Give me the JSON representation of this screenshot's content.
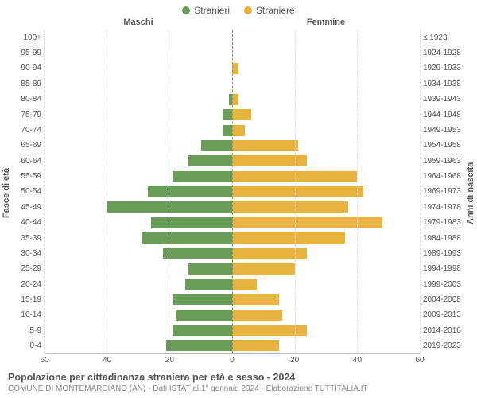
{
  "type": "population-pyramid",
  "legend": [
    {
      "label": "Stranieri",
      "color": "#6a9e58"
    },
    {
      "label": "Straniere",
      "color": "#e8b43f"
    }
  ],
  "headers": {
    "left": "Maschi",
    "right": "Femmine"
  },
  "y_axis_left_title": "Fasce di età",
  "y_axis_right_title": "Anni di nascita",
  "x_axis": {
    "max": 60,
    "ticks": [
      0,
      20,
      40,
      60
    ]
  },
  "bar_colors": {
    "male": "#6a9e58",
    "female": "#e8b43f"
  },
  "background_color": "#ffffff",
  "grid_color": "#dddddd",
  "center_line_color": "#888888",
  "label_color": "#555555",
  "label_fontsize": 10,
  "rows": [
    {
      "age": "100+",
      "birth": "≤ 1923",
      "male": 0,
      "female": 0
    },
    {
      "age": "95-99",
      "birth": "1924-1928",
      "male": 0,
      "female": 0
    },
    {
      "age": "90-94",
      "birth": "1929-1933",
      "male": 0,
      "female": 2
    },
    {
      "age": "85-89",
      "birth": "1934-1938",
      "male": 0,
      "female": 0
    },
    {
      "age": "80-84",
      "birth": "1939-1943",
      "male": 1,
      "female": 2
    },
    {
      "age": "75-79",
      "birth": "1944-1948",
      "male": 3,
      "female": 6
    },
    {
      "age": "70-74",
      "birth": "1949-1953",
      "male": 3,
      "female": 4
    },
    {
      "age": "65-69",
      "birth": "1954-1958",
      "male": 10,
      "female": 21
    },
    {
      "age": "60-64",
      "birth": "1959-1963",
      "male": 14,
      "female": 24
    },
    {
      "age": "55-59",
      "birth": "1964-1968",
      "male": 19,
      "female": 40
    },
    {
      "age": "50-54",
      "birth": "1969-1973",
      "male": 27,
      "female": 42
    },
    {
      "age": "45-49",
      "birth": "1974-1978",
      "male": 40,
      "female": 37
    },
    {
      "age": "40-44",
      "birth": "1979-1983",
      "male": 26,
      "female": 48
    },
    {
      "age": "35-39",
      "birth": "1984-1988",
      "male": 29,
      "female": 36
    },
    {
      "age": "30-34",
      "birth": "1989-1993",
      "male": 22,
      "female": 24
    },
    {
      "age": "25-29",
      "birth": "1994-1998",
      "male": 14,
      "female": 20
    },
    {
      "age": "20-24",
      "birth": "1999-2003",
      "male": 15,
      "female": 8
    },
    {
      "age": "15-19",
      "birth": "2004-2008",
      "male": 19,
      "female": 15
    },
    {
      "age": "10-14",
      "birth": "2009-2013",
      "male": 18,
      "female": 16
    },
    {
      "age": "5-9",
      "birth": "2014-2018",
      "male": 19,
      "female": 24
    },
    {
      "age": "0-4",
      "birth": "2019-2023",
      "male": 21,
      "female": 15
    }
  ],
  "footer": {
    "title": "Popolazione per cittadinanza straniera per età e sesso - 2024",
    "subtitle": "COMUNE DI MONTEMARCIANO (AN) - Dati ISTAT al 1° gennaio 2024 - Elaborazione TUTTITALIA.IT"
  }
}
